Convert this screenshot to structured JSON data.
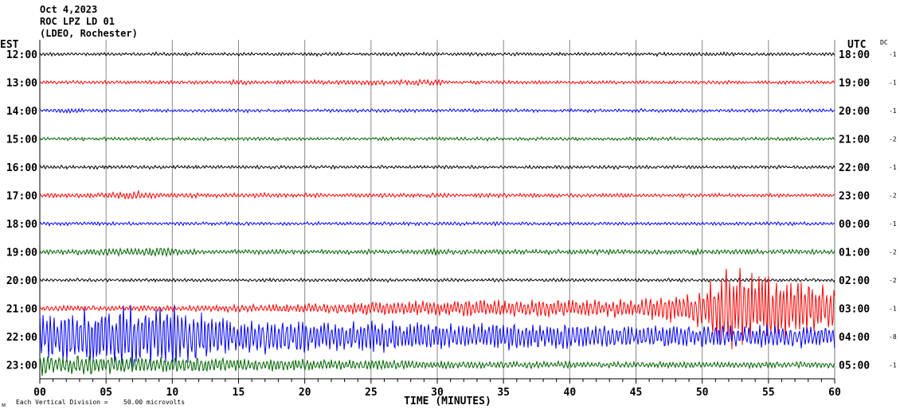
{
  "header": {
    "date": "Oct 4,2023",
    "station": "ROC LPZ LD 01",
    "network": "(LDEO, Rochester)"
  },
  "left_axis_title": "EST",
  "right_axis_title": "UTC",
  "dc_title": "DC",
  "footer": {
    "scale_note": "Each Vertical Division =",
    "scale_value": "50.00 microvolts",
    "corner_mark": "ᴍ"
  },
  "chart_data": {
    "type": "line",
    "title": "Oct 4,2023 ROC LPZ LD 01 (LDEO, Rochester)",
    "xlabel": "TIME (MINUTES)",
    "xlim": [
      0,
      60
    ],
    "x_ticks": [
      "00",
      "05",
      "10",
      "15",
      "20",
      "25",
      "30",
      "35",
      "40",
      "45",
      "50",
      "55",
      "60"
    ],
    "grid": "vertical every 5 minutes",
    "rows": [
      {
        "est": "12:00",
        "utc": "18:00",
        "dc": "-1",
        "color": "#000000",
        "amp": [
          [
            0,
            2
          ],
          [
            60,
            2
          ]
        ]
      },
      {
        "est": "13:00",
        "utc": "19:00",
        "dc": "-1",
        "color": "#ff0000",
        "amp": [
          [
            0,
            2
          ],
          [
            14,
            2
          ],
          [
            15,
            4
          ],
          [
            16,
            2
          ],
          [
            30,
            4
          ],
          [
            31,
            2
          ],
          [
            60,
            2
          ]
        ]
      },
      {
        "est": "14:00",
        "utc": "20:00",
        "dc": "-1",
        "color": "#0000ff",
        "amp": [
          [
            0,
            2
          ],
          [
            2,
            4
          ],
          [
            3,
            2
          ],
          [
            60,
            2
          ]
        ]
      },
      {
        "est": "15:00",
        "utc": "21:00",
        "dc": "-2",
        "color": "#006400",
        "amp": [
          [
            0,
            2
          ],
          [
            60,
            2
          ]
        ]
      },
      {
        "est": "16:00",
        "utc": "22:00",
        "dc": "-1",
        "color": "#000000",
        "amp": [
          [
            0,
            2
          ],
          [
            60,
            2
          ]
        ]
      },
      {
        "est": "17:00",
        "utc": "23:00",
        "dc": "-2",
        "color": "#ff0000",
        "amp": [
          [
            0,
            3
          ],
          [
            4,
            3
          ],
          [
            7,
            6
          ],
          [
            9,
            3
          ],
          [
            60,
            2
          ]
        ]
      },
      {
        "est": "18:00",
        "utc": "00:00",
        "dc": "-1",
        "color": "#0000ff",
        "amp": [
          [
            0,
            2
          ],
          [
            60,
            2
          ]
        ]
      },
      {
        "est": "19:00",
        "utc": "01:00",
        "dc": "-2",
        "color": "#006400",
        "amp": [
          [
            0,
            3
          ],
          [
            10,
            6
          ],
          [
            12,
            3
          ],
          [
            29,
            3
          ],
          [
            30,
            5
          ],
          [
            31,
            3
          ],
          [
            60,
            3
          ]
        ]
      },
      {
        "est": "20:00",
        "utc": "02:00",
        "dc": "-2",
        "color": "#000000",
        "amp": [
          [
            0,
            2
          ],
          [
            60,
            2
          ]
        ]
      },
      {
        "est": "21:00",
        "utc": "03:00",
        "dc": "-1",
        "color": "#ff0000",
        "amp": [
          [
            0,
            3
          ],
          [
            10,
            4
          ],
          [
            20,
            6
          ],
          [
            27,
            10
          ],
          [
            45,
            12
          ],
          [
            50,
            25
          ],
          [
            52,
            60
          ],
          [
            55,
            45
          ],
          [
            60,
            30
          ]
        ]
      },
      {
        "est": "22:00",
        "utc": "04:00",
        "dc": "-8",
        "color": "#0000ff",
        "amp": [
          [
            0,
            30
          ],
          [
            8,
            45
          ],
          [
            15,
            25
          ],
          [
            30,
            20
          ],
          [
            45,
            15
          ],
          [
            60,
            15
          ]
        ]
      },
      {
        "est": "23:00",
        "utc": "05:00",
        "dc": "-1",
        "color": "#006400",
        "amp": [
          [
            0,
            14
          ],
          [
            10,
            10
          ],
          [
            20,
            8
          ],
          [
            30,
            5
          ],
          [
            45,
            4
          ],
          [
            60,
            4
          ]
        ]
      }
    ]
  }
}
